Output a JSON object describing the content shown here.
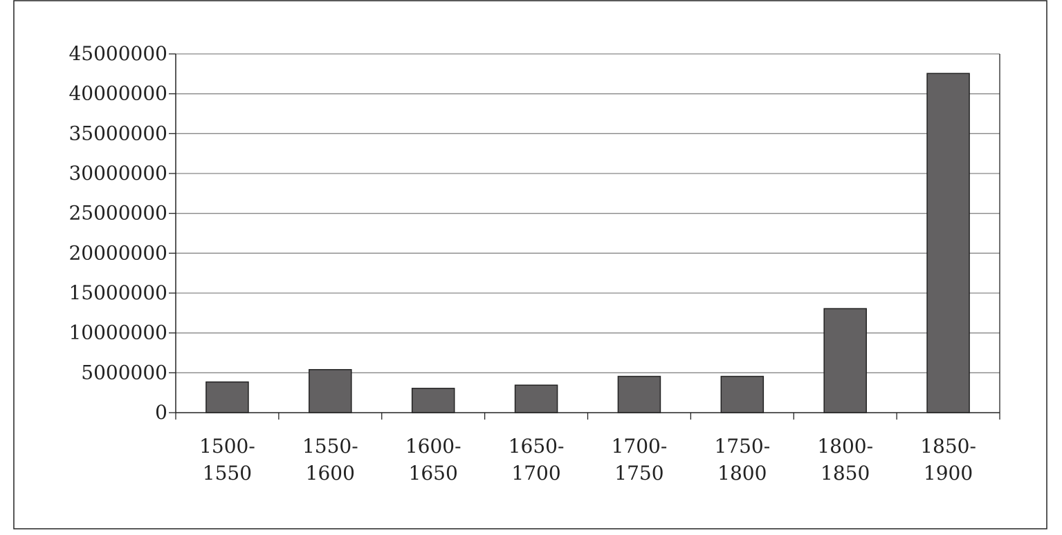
{
  "chart_data": {
    "type": "bar",
    "title": "",
    "xlabel": "",
    "ylabel": "",
    "categories": [
      [
        "1500-",
        "1550"
      ],
      [
        "1550-",
        "1600"
      ],
      [
        "1600-",
        "1650"
      ],
      [
        "1650-",
        "1700"
      ],
      [
        "1700-",
        "1750"
      ],
      [
        "1750-",
        "1800"
      ],
      [
        "1800-",
        "1850"
      ],
      [
        "1850-",
        "1900"
      ]
    ],
    "values": [
      3850000,
      5400000,
      3050000,
      3450000,
      4550000,
      4550000,
      13050000,
      42550000
    ],
    "ylim": [
      0,
      45000000
    ],
    "yticks": [
      "0",
      "5000000",
      "10000000",
      "15000000",
      "20000000",
      "25000000",
      "30000000",
      "35000000",
      "40000000",
      "45000000"
    ],
    "grid": true,
    "legend": "none",
    "colors": {
      "bar_fill": "#636162",
      "bar_stroke": "#222222",
      "grid": "#888888",
      "axis": "#222222",
      "frame": "#222222"
    }
  }
}
